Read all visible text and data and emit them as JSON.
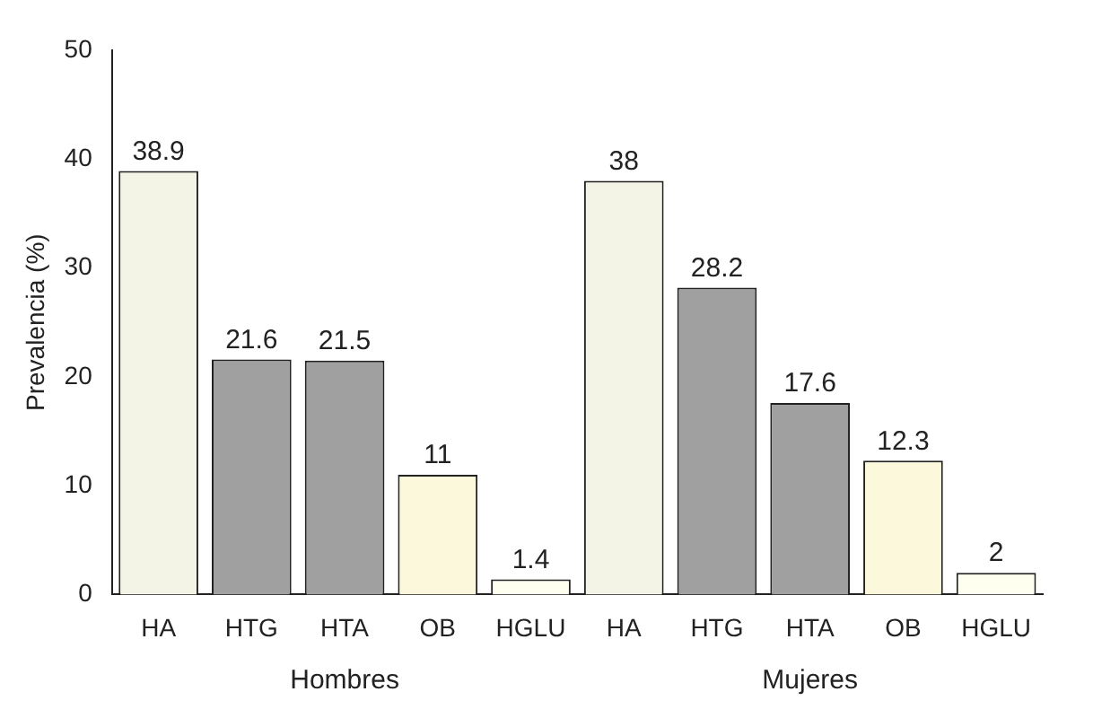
{
  "chart_data": {
    "type": "bar",
    "ylabel": "Prevalencia (%)",
    "categories": [
      "HA",
      "HTG",
      "HTA",
      "OB",
      "HGLU",
      "HA",
      "HTG",
      "HTA",
      "OB",
      "HGLU"
    ],
    "values": [
      38.9,
      21.6,
      21.5,
      11,
      1.4,
      38,
      28.2,
      17.6,
      12.3,
      2
    ],
    "colors": [
      "#f4f4e6",
      "#a0a0a0",
      "#a0a0a0",
      "#fbf8dc",
      "#fffff0",
      "#f4f4e6",
      "#a0a0a0",
      "#a0a0a0",
      "#fbf8dc",
      "#fffff0"
    ],
    "ylim": [
      0,
      50
    ],
    "yticks": [
      0,
      10,
      20,
      30,
      40,
      50
    ],
    "grid": false,
    "data_labels": true,
    "legend": false,
    "annotations": [
      "Hombres",
      "Mujeres"
    ]
  }
}
